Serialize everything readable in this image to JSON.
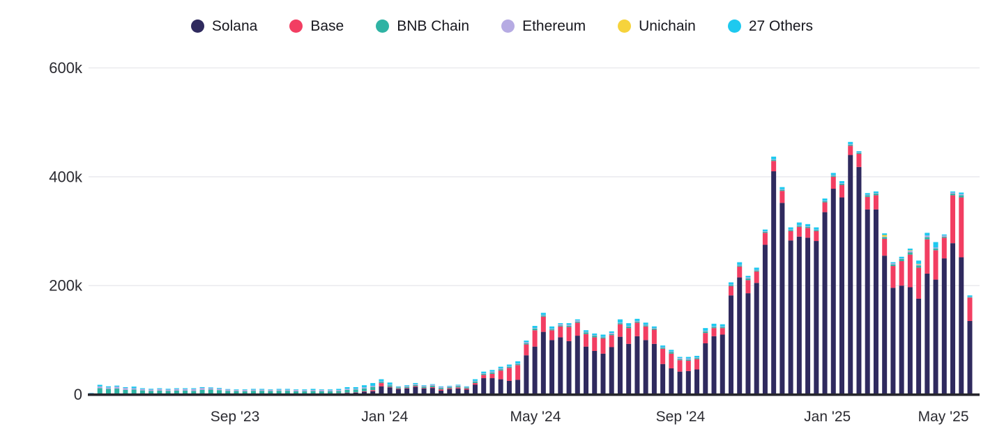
{
  "chart_data": {
    "type": "bar",
    "stacked": true,
    "title": "",
    "values_unit": "thousands",
    "grid": true,
    "legend_position": "top-center",
    "ylim": [
      0,
      600
    ],
    "y_axis": {
      "ticks": [
        {
          "label": "0",
          "value": 0
        },
        {
          "label": "200k",
          "value": 200
        },
        {
          "label": "400k",
          "value": 400
        },
        {
          "label": "600k",
          "value": 600
        }
      ]
    },
    "x_axis": {
      "ticks": [
        {
          "label": "Sep '23",
          "i": 16.84
        },
        {
          "label": "Jan '24",
          "i": 34.4
        },
        {
          "label": "May '24",
          "i": 52.07
        },
        {
          "label": "Sep '24",
          "i": 69.07
        },
        {
          "label": "Jan '25",
          "i": 86.3
        },
        {
          "label": "May '25",
          "i": 99.9
        }
      ]
    },
    "series": [
      {
        "name": "Solana",
        "color": "#2f2a5e",
        "values": [
          0.3,
          0.5,
          0.5,
          0.5,
          0.3,
          0.3,
          0.3,
          0.3,
          0.3,
          0.3,
          0.3,
          0.3,
          0.3,
          0.3,
          0.5,
          0.5,
          0.5,
          0.5,
          0.5,
          1,
          1,
          1,
          1,
          1,
          1,
          1,
          1.5,
          1.5,
          1.5,
          2,
          3,
          3.5,
          5,
          6,
          15,
          13,
          10,
          11,
          14,
          11,
          12,
          7,
          10,
          11,
          9,
          18,
          30,
          30,
          28,
          25,
          27,
          72,
          88,
          115,
          100,
          105,
          98,
          108,
          88,
          80,
          75,
          87,
          106,
          93,
          107,
          100,
          93,
          56,
          48,
          42,
          43,
          46,
          94,
          107,
          110,
          182,
          215,
          186,
          205,
          275,
          410,
          352,
          283,
          290,
          288,
          282,
          335,
          378,
          362,
          440,
          418,
          340,
          340,
          255,
          196,
          200,
          197,
          176,
          222,
          211,
          250,
          278,
          252,
          135
        ]
      },
      {
        "name": "Base",
        "color": "#f23e62",
        "values": [
          0.2,
          0.3,
          0.3,
          0.3,
          0.2,
          0.2,
          0.2,
          0.2,
          0.2,
          0.2,
          0.2,
          0.2,
          0.2,
          0.2,
          1,
          1,
          0.5,
          0.3,
          0.3,
          0.3,
          0.3,
          0.3,
          0.3,
          0.3,
          0.3,
          0.3,
          0.3,
          0.3,
          0.3,
          0.3,
          0.5,
          0.5,
          1,
          2,
          6,
          1,
          1,
          1,
          1.5,
          1,
          1.5,
          2.5,
          1.5,
          2,
          2,
          3,
          6,
          8,
          16,
          24,
          27,
          20,
          30,
          28,
          18,
          20,
          26,
          24,
          23,
          25,
          28,
          22,
          23,
          29,
          25,
          25,
          26,
          28,
          27,
          21,
          19,
          19,
          19,
          15,
          12,
          17,
          20,
          24,
          21,
          22,
          19,
          22,
          17,
          18,
          18,
          18,
          18,
          22,
          23,
          17,
          24,
          23,
          26,
          31,
          40,
          45,
          60,
          57,
          63,
          54,
          38,
          88,
          110,
          43
        ]
      },
      {
        "name": "BNB Chain",
        "color": "#2fb3a4",
        "values": [
          1.5,
          11,
          9.5,
          10,
          8,
          8.5,
          7,
          6,
          6.5,
          6,
          6.5,
          6.5,
          6,
          8,
          7.5,
          6.5,
          5.5,
          5.5,
          5,
          5.5,
          5.5,
          5,
          5.5,
          5.5,
          4.5,
          4.5,
          4.5,
          4,
          4,
          4,
          5,
          5,
          5,
          6,
          2,
          3,
          2,
          2,
          2,
          2.5,
          2.5,
          2.5,
          2,
          2.5,
          2,
          3,
          2,
          2.5,
          2.5,
          2,
          2,
          2,
          3,
          2,
          2,
          2,
          2,
          2,
          3,
          3,
          2,
          2,
          2,
          3,
          2,
          2,
          2,
          2,
          3,
          2,
          2,
          2,
          3,
          2,
          2,
          2,
          2,
          3,
          2,
          2,
          2,
          2,
          2,
          2,
          2,
          2,
          2,
          2,
          2,
          2,
          2,
          3,
          3,
          3,
          3,
          4,
          4,
          4,
          4,
          3,
          2,
          3,
          4,
          1
        ]
      },
      {
        "name": "Ethereum",
        "color": "#b6abe3",
        "values": [
          0.5,
          3,
          2.7,
          3.5,
          3.5,
          2.5,
          2.5,
          2.5,
          3,
          2.5,
          3,
          3,
          3.5,
          3.5,
          2.5,
          2.5,
          2.5,
          2,
          2.5,
          2,
          2,
          2,
          2,
          2,
          2.5,
          2,
          2,
          2.5,
          2,
          2,
          2,
          1.5,
          2,
          2,
          1,
          1,
          1,
          1.5,
          1.5,
          1.5,
          2,
          2,
          1.5,
          1.5,
          1,
          1,
          1,
          1.5,
          1.5,
          1,
          1,
          2,
          1,
          1,
          1,
          2,
          2,
          2,
          1,
          1,
          1,
          2,
          1,
          1,
          1,
          1,
          1,
          1,
          1,
          2,
          2,
          1,
          1,
          1,
          1,
          1,
          1,
          2,
          1,
          1,
          1,
          1,
          1,
          1,
          1,
          1,
          1,
          1,
          1,
          1,
          1,
          1,
          1,
          1,
          2,
          1,
          3,
          2,
          3,
          2,
          2,
          2,
          2,
          0.5
        ]
      },
      {
        "name": "Unichain",
        "color": "#f6d33c",
        "values": [
          0,
          0,
          0,
          0,
          0,
          0,
          0,
          0,
          0,
          0,
          0,
          0,
          0,
          0,
          0,
          0,
          0,
          0,
          0,
          0,
          0,
          0,
          0,
          0,
          0,
          0,
          0,
          0,
          0,
          0,
          0,
          0,
          0,
          0,
          0,
          0,
          0,
          0,
          0,
          0,
          0,
          0,
          0,
          0,
          0,
          0,
          0,
          0,
          0,
          0,
          0,
          0,
          0,
          0,
          0,
          0,
          0,
          0,
          0,
          0,
          0,
          0,
          0,
          0,
          0,
          0,
          0,
          0,
          0,
          0,
          0,
          0,
          0,
          0,
          0,
          0,
          0,
          0,
          0,
          0,
          0,
          0,
          0,
          0,
          0,
          0,
          0,
          0,
          0,
          0,
          0,
          0,
          0,
          3,
          0,
          0,
          1,
          1,
          0,
          0,
          0,
          0,
          0,
          0
        ]
      },
      {
        "name": "27 Others",
        "color": "#1ec9ef",
        "values": [
          0.5,
          3,
          2,
          2,
          1.5,
          3,
          1.5,
          1.5,
          1.5,
          1.5,
          1.5,
          1.5,
          1.5,
          1.5,
          1.5,
          1.5,
          1,
          1,
          1,
          1.5,
          1.5,
          1,
          1.5,
          1.5,
          1,
          1.5,
          2,
          1,
          1.5,
          2,
          3,
          3,
          4,
          5,
          4,
          4,
          1,
          1.5,
          2,
          1,
          1,
          1,
          1,
          1,
          1,
          3,
          3,
          3,
          3,
          3,
          4,
          3,
          4,
          4,
          4,
          2,
          3,
          2,
          3,
          3,
          4,
          3,
          6,
          5,
          4,
          4,
          3,
          3,
          3,
          2,
          3,
          3,
          5,
          5,
          4,
          4,
          5,
          3,
          4,
          3,
          5,
          4,
          4,
          5,
          4,
          4,
          4,
          4,
          4,
          4,
          2,
          3,
          3,
          3,
          2,
          3,
          3,
          6,
          5,
          10,
          2,
          2,
          3,
          2.5
        ]
      }
    ]
  }
}
